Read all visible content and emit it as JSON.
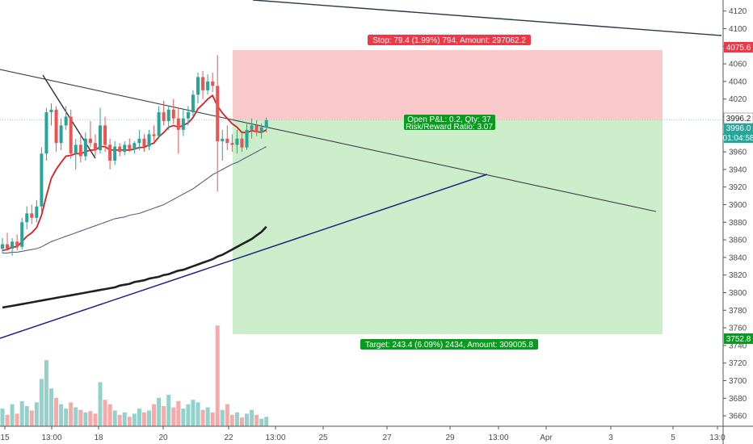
{
  "chart_data": {
    "type": "candlestick",
    "ylim": [
      3650,
      4130
    ],
    "grid": false,
    "y_ticks": [
      3660,
      3680,
      3700,
      3720,
      3740,
      3760,
      3780,
      3800,
      3820,
      3840,
      3860,
      3880,
      3900,
      3920,
      3940,
      3960,
      3980,
      4000,
      4020,
      4040,
      4060,
      4080,
      4100,
      4120
    ],
    "x_ticks": [
      "15",
      "13:00",
      "18",
      "20",
      "22",
      "13:00",
      "25",
      "27",
      "29",
      "13:00",
      "Apr",
      "3",
      "5",
      "13:0"
    ],
    "price_labels": {
      "stop_price": "4075.6",
      "entry_price": "3996.2",
      "current_price": "3996.0",
      "countdown": "01:04:58",
      "target_price": "3752.8"
    },
    "position": {
      "stop_text": "Stop: 79.4 (1.99%) 794, Amount: 297062.2",
      "pnl_text": "Open P&L: 0.2, Qty: 37",
      "rr_text": "Risk/Reward Ratio: 3.07",
      "target_text": "Target: 243.4 (6.09%) 2434, Amount: 309005.8",
      "stop_value": 4075.6,
      "entry_value": 3996.2,
      "target_value": 3752.8
    },
    "candles": [
      {
        "o": 3850,
        "h": 3862,
        "l": 3845,
        "c": 3855,
        "v": 28
      },
      {
        "o": 3855,
        "h": 3868,
        "l": 3850,
        "c": 3850,
        "v": 18
      },
      {
        "o": 3850,
        "h": 3862,
        "l": 3842,
        "c": 3858,
        "v": 35
      },
      {
        "o": 3858,
        "h": 3866,
        "l": 3848,
        "c": 3852,
        "v": 20
      },
      {
        "o": 3852,
        "h": 3885,
        "l": 3849,
        "c": 3880,
        "v": 40
      },
      {
        "o": 3880,
        "h": 3898,
        "l": 3872,
        "c": 3890,
        "v": 32
      },
      {
        "o": 3890,
        "h": 3900,
        "l": 3878,
        "c": 3885,
        "v": 25
      },
      {
        "o": 3885,
        "h": 3905,
        "l": 3880,
        "c": 3898,
        "v": 38
      },
      {
        "o": 3898,
        "h": 3965,
        "l": 3892,
        "c": 3958,
        "v": 75
      },
      {
        "o": 3958,
        "h": 4010,
        "l": 3950,
        "c": 4005,
        "v": 105
      },
      {
        "o": 4005,
        "h": 4015,
        "l": 3990,
        "c": 4008,
        "v": 60
      },
      {
        "o": 4008,
        "h": 4012,
        "l": 3960,
        "c": 3970,
        "v": 45
      },
      {
        "o": 3970,
        "h": 3998,
        "l": 3962,
        "c": 3990,
        "v": 35
      },
      {
        "o": 3990,
        "h": 4012,
        "l": 3985,
        "c": 4000,
        "v": 28
      },
      {
        "o": 4000,
        "h": 4008,
        "l": 3952,
        "c": 3958,
        "v": 38
      },
      {
        "o": 3958,
        "h": 3975,
        "l": 3940,
        "c": 3968,
        "v": 30
      },
      {
        "o": 3968,
        "h": 3980,
        "l": 3948,
        "c": 3955,
        "v": 26
      },
      {
        "o": 3955,
        "h": 3982,
        "l": 3950,
        "c": 3975,
        "v": 22
      },
      {
        "o": 3975,
        "h": 3995,
        "l": 3965,
        "c": 3970,
        "v": 24
      },
      {
        "o": 3970,
        "h": 3980,
        "l": 3955,
        "c": 3962,
        "v": 20
      },
      {
        "o": 3962,
        "h": 4010,
        "l": 3958,
        "c": 3990,
        "v": 70
      },
      {
        "o": 3990,
        "h": 4000,
        "l": 3960,
        "c": 3968,
        "v": 42
      },
      {
        "o": 3968,
        "h": 3975,
        "l": 3940,
        "c": 3950,
        "v": 35
      },
      {
        "o": 3950,
        "h": 3972,
        "l": 3945,
        "c": 3966,
        "v": 25
      },
      {
        "o": 3966,
        "h": 3970,
        "l": 3955,
        "c": 3960,
        "v": 18
      },
      {
        "o": 3960,
        "h": 3972,
        "l": 3956,
        "c": 3968,
        "v": 22
      },
      {
        "o": 3968,
        "h": 3975,
        "l": 3960,
        "c": 3963,
        "v": 15
      },
      {
        "o": 3963,
        "h": 3972,
        "l": 3958,
        "c": 3970,
        "v": 20
      },
      {
        "o": 3970,
        "h": 3985,
        "l": 3962,
        "c": 3975,
        "v": 28
      },
      {
        "o": 3975,
        "h": 3980,
        "l": 3960,
        "c": 3966,
        "v": 22
      },
      {
        "o": 3966,
        "h": 3985,
        "l": 3962,
        "c": 3980,
        "v": 25
      },
      {
        "o": 3980,
        "h": 3990,
        "l": 3972,
        "c": 3978,
        "v": 35
      },
      {
        "o": 3978,
        "h": 4012,
        "l": 3975,
        "c": 4005,
        "v": 45
      },
      {
        "o": 4005,
        "h": 4018,
        "l": 3990,
        "c": 3995,
        "v": 32
      },
      {
        "o": 3995,
        "h": 4012,
        "l": 3985,
        "c": 4008,
        "v": 50
      },
      {
        "o": 4008,
        "h": 4020,
        "l": 3992,
        "c": 3998,
        "v": 30
      },
      {
        "o": 3998,
        "h": 4010,
        "l": 3958,
        "c": 3985,
        "v": 40
      },
      {
        "o": 3985,
        "h": 4008,
        "l": 3978,
        "c": 3998,
        "v": 28
      },
      {
        "o": 3998,
        "h": 4012,
        "l": 3990,
        "c": 4005,
        "v": 35
      },
      {
        "o": 4005,
        "h": 4030,
        "l": 4000,
        "c": 4025,
        "v": 42
      },
      {
        "o": 4025,
        "h": 4050,
        "l": 4015,
        "c": 4045,
        "v": 38
      },
      {
        "o": 4045,
        "h": 4052,
        "l": 4020,
        "c": 4030,
        "v": 26
      },
      {
        "o": 4030,
        "h": 4048,
        "l": 4025,
        "c": 4040,
        "v": 30
      },
      {
        "o": 4040,
        "h": 4050,
        "l": 4028,
        "c": 4035,
        "v": 22
      },
      {
        "o": 4035,
        "h": 4070,
        "l": 3915,
        "c": 3972,
        "v": 160
      },
      {
        "o": 3972,
        "h": 3985,
        "l": 3950,
        "c": 3975,
        "v": 26
      },
      {
        "o": 3975,
        "h": 3990,
        "l": 3962,
        "c": 3970,
        "v": 35
      },
      {
        "o": 3970,
        "h": 3980,
        "l": 3960,
        "c": 3968,
        "v": 18
      },
      {
        "o": 3968,
        "h": 3985,
        "l": 3958,
        "c": 3975,
        "v": 22
      },
      {
        "o": 3975,
        "h": 3982,
        "l": 3960,
        "c": 3965,
        "v": 14
      },
      {
        "o": 3965,
        "h": 3992,
        "l": 3962,
        "c": 3985,
        "v": 20
      },
      {
        "o": 3985,
        "h": 3998,
        "l": 3975,
        "c": 3990,
        "v": 26
      },
      {
        "o": 3990,
        "h": 3996,
        "l": 3978,
        "c": 3982,
        "v": 18
      },
      {
        "o": 3982,
        "h": 3992,
        "l": 3975,
        "c": 3988,
        "v": 12
      },
      {
        "o": 3988,
        "h": 3999,
        "l": 3982,
        "c": 3996,
        "v": 15
      }
    ],
    "ema_fast": [
      3848,
      3849,
      3852,
      3852,
      3858,
      3864,
      3868,
      3874,
      3888,
      3910,
      3930,
      3940,
      3948,
      3955,
      3956,
      3958,
      3958,
      3960,
      3962,
      3962,
      3966,
      3966,
      3962,
      3962,
      3962,
      3962,
      3962,
      3963,
      3965,
      3965,
      3968,
      3970,
      3977,
      3982,
      3988,
      3990,
      3988,
      3990,
      3993,
      3999,
      4009,
      4014,
      4020,
      4024,
      4012,
      4004,
      3998,
      3992,
      3988,
      3982,
      3982,
      3984,
      3983,
      3982,
      3985
    ],
    "sma_mid": [
      3845,
      3845,
      3846,
      3846,
      3847,
      3848,
      3849,
      3850,
      3852,
      3855,
      3858,
      3860,
      3862,
      3864,
      3866,
      3868,
      3870,
      3872,
      3874,
      3876,
      3878,
      3880,
      3882,
      3884,
      3885,
      3886,
      3888,
      3889,
      3890,
      3892,
      3894,
      3896,
      3898,
      3900,
      3903,
      3906,
      3909,
      3912,
      3915,
      3918,
      3922,
      3926,
      3930,
      3934,
      3937,
      3940,
      3943,
      3946,
      3948,
      3951,
      3954,
      3957,
      3960,
      3963,
      3966
    ],
    "sma_slow": [
      3783,
      3784,
      3785,
      3786,
      3787,
      3788,
      3789,
      3790,
      3791,
      3792,
      3793,
      3794,
      3795,
      3796,
      3797,
      3798,
      3799,
      3800,
      3801,
      3802,
      3803,
      3804,
      3805,
      3806,
      3808,
      3809,
      3810,
      3812,
      3813,
      3814,
      3816,
      3817,
      3818,
      3820,
      3821,
      3823,
      3825,
      3826,
      3828,
      3830,
      3832,
      3834,
      3836,
      3838,
      3841,
      3843,
      3846,
      3849,
      3852,
      3855,
      3858,
      3861,
      3865,
      3869,
      3875
    ]
  }
}
